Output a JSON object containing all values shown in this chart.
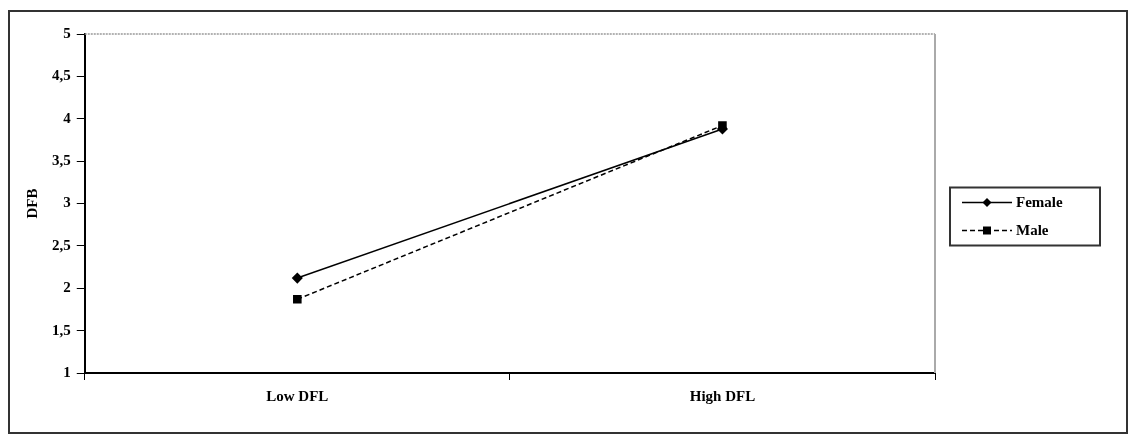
{
  "chart_data": {
    "type": "line",
    "ylabel": "DFB",
    "categories": [
      "Low DFL",
      "High DFL"
    ],
    "series": [
      {
        "name": "Female",
        "color": "#000000",
        "values": [
          2.12,
          3.88
        ],
        "marker": "diamond",
        "line_style": "solid"
      },
      {
        "name": "Male",
        "color": "#000000",
        "values": [
          1.87,
          3.92
        ],
        "marker": "square",
        "line_style": "dashed"
      }
    ],
    "ylim": [
      1,
      5
    ],
    "yticks": [
      1,
      {
        "value": 1.5,
        "label": "1,5"
      },
      2,
      {
        "value": 2.5,
        "label": "2,5"
      },
      3,
      {
        "value": 3.5,
        "label": "3,5"
      },
      4,
      {
        "value": 4.5,
        "label": "4,5"
      },
      5
    ],
    "grid": false,
    "legend": "right"
  }
}
